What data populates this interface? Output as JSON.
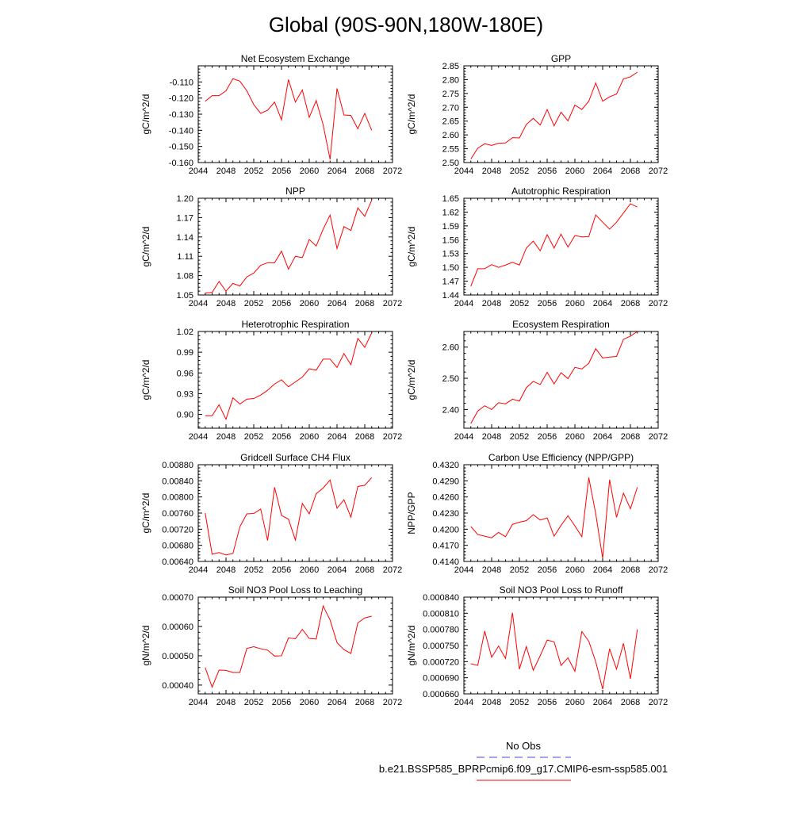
{
  "page_title": "Global (90S-90N,180W-180E)",
  "legend": {
    "obs_label": "No Obs",
    "obs_color": "#4444dd",
    "model_label": "b.e21.BSSP585_BPRPcmip6.f09_g17.CMIP6-esm-ssp585.001",
    "model_color": "#ff0000"
  },
  "chart_data": [
    {
      "type": "line",
      "title": "Net Ecosystem Exchange",
      "ylabel": "gC/m^2/d",
      "xlim": [
        2044,
        2072
      ],
      "ylim": [
        -0.16,
        -0.1
      ],
      "xticks": [
        2044,
        2048,
        2052,
        2056,
        2060,
        2064,
        2068,
        2072
      ],
      "yticks": [
        -0.16,
        -0.15,
        -0.14,
        -0.13,
        -0.12,
        -0.11
      ],
      "ytick_labels": [
        "-0.160",
        "-0.150",
        "-0.140",
        "-0.130",
        "-0.120",
        "-0.110"
      ],
      "x": [
        2045,
        2046,
        2047,
        2048,
        2049,
        2050,
        2051,
        2052,
        2053,
        2054,
        2055,
        2056,
        2057,
        2058,
        2059,
        2060,
        2061,
        2062,
        2063,
        2064,
        2065,
        2066,
        2067,
        2068,
        2069
      ],
      "series": [
        {
          "values": [
            -0.122,
            -0.1185,
            -0.1185,
            -0.1155,
            -0.108,
            -0.1095,
            -0.1155,
            -0.124,
            -0.1295,
            -0.1275,
            -0.1225,
            -0.1335,
            -0.1085,
            -0.1225,
            -0.115,
            -0.132,
            -0.1215,
            -0.1365,
            -0.158,
            -0.114,
            -0.1305,
            -0.1308,
            -0.139,
            -0.1295,
            -0.14
          ]
        }
      ]
    },
    {
      "type": "line",
      "title": "GPP",
      "ylabel": "gC/m^2/d",
      "xlim": [
        2044,
        2072
      ],
      "ylim": [
        2.5,
        2.85
      ],
      "xticks": [
        2044,
        2048,
        2052,
        2056,
        2060,
        2064,
        2068,
        2072
      ],
      "yticks": [
        2.5,
        2.55,
        2.6,
        2.65,
        2.7,
        2.75,
        2.8,
        2.85
      ],
      "ytick_labels": [
        "2.50",
        "2.55",
        "2.60",
        "2.65",
        "2.70",
        "2.75",
        "2.80",
        "2.85"
      ],
      "x": [
        2045,
        2046,
        2047,
        2048,
        2049,
        2050,
        2051,
        2052,
        2053,
        2054,
        2055,
        2056,
        2057,
        2058,
        2059,
        2060,
        2061,
        2062,
        2063,
        2064,
        2065,
        2066,
        2067,
        2068,
        2069
      ],
      "series": [
        {
          "values": [
            2.513,
            2.552,
            2.568,
            2.562,
            2.57,
            2.571,
            2.59,
            2.589,
            2.638,
            2.66,
            2.636,
            2.692,
            2.633,
            2.682,
            2.651,
            2.708,
            2.692,
            2.722,
            2.788,
            2.722,
            2.738,
            2.748,
            2.803,
            2.81,
            2.827
          ]
        }
      ]
    },
    {
      "type": "line",
      "title": "NPP",
      "ylabel": "gC/m^2/d",
      "xlim": [
        2044,
        2072
      ],
      "ylim": [
        1.05,
        1.2
      ],
      "xticks": [
        2044,
        2048,
        2052,
        2056,
        2060,
        2064,
        2068,
        2072
      ],
      "yticks": [
        1.05,
        1.08,
        1.11,
        1.14,
        1.17,
        1.2
      ],
      "ytick_labels": [
        "1.05",
        "1.08",
        "1.11",
        "1.14",
        "1.17",
        "1.20"
      ],
      "x": [
        2045,
        2046,
        2047,
        2048,
        2049,
        2050,
        2051,
        2052,
        2053,
        2054,
        2055,
        2056,
        2057,
        2058,
        2059,
        2060,
        2061,
        2062,
        2063,
        2064,
        2065,
        2066,
        2067,
        2068,
        2069
      ],
      "series": [
        {
          "values": [
            1.053,
            1.054,
            1.071,
            1.056,
            1.068,
            1.064,
            1.078,
            1.084,
            1.096,
            1.1,
            1.1,
            1.118,
            1.09,
            1.11,
            1.108,
            1.136,
            1.126,
            1.152,
            1.174,
            1.122,
            1.156,
            1.15,
            1.185,
            1.172,
            1.197
          ]
        }
      ]
    },
    {
      "type": "line",
      "title": "Autotrophic Respiration",
      "ylabel": "gC/m^2/d",
      "xlim": [
        2044,
        2072
      ],
      "ylim": [
        1.44,
        1.65
      ],
      "xticks": [
        2044,
        2048,
        2052,
        2056,
        2060,
        2064,
        2068,
        2072
      ],
      "yticks": [
        1.44,
        1.47,
        1.5,
        1.53,
        1.56,
        1.59,
        1.62,
        1.65
      ],
      "ytick_labels": [
        "1.44",
        "1.47",
        "1.50",
        "1.53",
        "1.56",
        "1.59",
        "1.62",
        "1.65"
      ],
      "x": [
        2045,
        2046,
        2047,
        2048,
        2049,
        2050,
        2051,
        2052,
        2053,
        2054,
        2055,
        2056,
        2057,
        2058,
        2059,
        2060,
        2061,
        2062,
        2063,
        2064,
        2065,
        2066,
        2067,
        2068,
        2069
      ],
      "series": [
        {
          "values": [
            1.459,
            1.497,
            1.497,
            1.506,
            1.5,
            1.505,
            1.511,
            1.505,
            1.542,
            1.557,
            1.536,
            1.571,
            1.542,
            1.572,
            1.544,
            1.569,
            1.566,
            1.567,
            1.614,
            1.598,
            1.583,
            1.598,
            1.618,
            1.638,
            1.631
          ]
        }
      ]
    },
    {
      "type": "line",
      "title": "Heterotrophic Respiration",
      "ylabel": "gC/m^2/d",
      "xlim": [
        2044,
        2072
      ],
      "ylim": [
        0.88,
        1.02
      ],
      "xticks": [
        2044,
        2048,
        2052,
        2056,
        2060,
        2064,
        2068,
        2072
      ],
      "yticks": [
        0.9,
        0.93,
        0.96,
        0.99,
        1.02
      ],
      "ytick_labels": [
        "0.90",
        "0.93",
        "0.96",
        "0.99",
        "1.02"
      ],
      "x": [
        2045,
        2046,
        2047,
        2048,
        2049,
        2050,
        2051,
        2052,
        2053,
        2054,
        2055,
        2056,
        2057,
        2058,
        2059,
        2060,
        2061,
        2062,
        2063,
        2064,
        2065,
        2066,
        2067,
        2068,
        2069
      ],
      "series": [
        {
          "values": [
            0.898,
            0.898,
            0.914,
            0.893,
            0.924,
            0.915,
            0.922,
            0.923,
            0.928,
            0.935,
            0.944,
            0.95,
            0.94,
            0.947,
            0.954,
            0.966,
            0.964,
            0.98,
            0.98,
            0.968,
            0.988,
            0.972,
            1.01,
            0.997,
            1.018
          ]
        }
      ]
    },
    {
      "type": "line",
      "title": "Ecosystem Respiration",
      "ylabel": "gC/m^2/d",
      "xlim": [
        2044,
        2072
      ],
      "ylim": [
        2.34,
        2.65
      ],
      "xticks": [
        2044,
        2048,
        2052,
        2056,
        2060,
        2064,
        2068,
        2072
      ],
      "yticks": [
        2.4,
        2.5,
        2.6
      ],
      "ytick_labels": [
        "2.40",
        "2.50",
        "2.60"
      ],
      "x": [
        2045,
        2046,
        2047,
        2048,
        2049,
        2050,
        2051,
        2052,
        2053,
        2054,
        2055,
        2056,
        2057,
        2058,
        2059,
        2060,
        2061,
        2062,
        2063,
        2064,
        2065,
        2066,
        2067,
        2068,
        2069
      ],
      "series": [
        {
          "values": [
            2.355,
            2.395,
            2.412,
            2.4,
            2.422,
            2.418,
            2.433,
            2.427,
            2.47,
            2.49,
            2.48,
            2.519,
            2.482,
            2.518,
            2.499,
            2.535,
            2.53,
            2.548,
            2.595,
            2.565,
            2.568,
            2.57,
            2.625,
            2.635,
            2.65
          ]
        }
      ]
    },
    {
      "type": "line",
      "title": "Gridcell Surface CH4 Flux",
      "ylabel": "gC/m^2/d",
      "xlim": [
        2044,
        2072
      ],
      "ylim": [
        0.0064,
        0.0088
      ],
      "xticks": [
        2044,
        2048,
        2052,
        2056,
        2060,
        2064,
        2068,
        2072
      ],
      "yticks": [
        0.0064,
        0.0068,
        0.0072,
        0.0076,
        0.008,
        0.0084,
        0.0088
      ],
      "ytick_labels": [
        "0.00640",
        "0.00680",
        "0.00720",
        "0.00760",
        "0.00800",
        "0.00840",
        "0.00880"
      ],
      "x": [
        2045,
        2046,
        2047,
        2048,
        2049,
        2050,
        2051,
        2052,
        2053,
        2054,
        2055,
        2056,
        2057,
        2058,
        2059,
        2060,
        2061,
        2062,
        2063,
        2064,
        2065,
        2066,
        2067,
        2068,
        2069
      ],
      "series": [
        {
          "values": [
            0.0076,
            0.00658,
            0.00662,
            0.00656,
            0.0066,
            0.00726,
            0.00758,
            0.00759,
            0.0077,
            0.00692,
            0.00824,
            0.00754,
            0.00745,
            0.00693,
            0.00784,
            0.00758,
            0.00808,
            0.00822,
            0.00842,
            0.00772,
            0.00793,
            0.0075,
            0.00826,
            0.00829,
            0.00848
          ]
        }
      ]
    },
    {
      "type": "line",
      "title": "Carbon Use Efficiency (NPP/GPP)",
      "ylabel": "NPP/GPP",
      "xlim": [
        2044,
        2072
      ],
      "ylim": [
        0.414,
        0.432
      ],
      "xticks": [
        2044,
        2048,
        2052,
        2056,
        2060,
        2064,
        2068,
        2072
      ],
      "yticks": [
        0.414,
        0.417,
        0.42,
        0.423,
        0.426,
        0.429,
        0.432
      ],
      "ytick_labels": [
        "0.4140",
        "0.4170",
        "0.4200",
        "0.4230",
        "0.4260",
        "0.4290",
        "0.4320"
      ],
      "x": [
        2045,
        2046,
        2047,
        2048,
        2049,
        2050,
        2051,
        2052,
        2053,
        2054,
        2055,
        2056,
        2057,
        2058,
        2059,
        2060,
        2061,
        2062,
        2063,
        2064,
        2065,
        2066,
        2067,
        2068,
        2069
      ],
      "series": [
        {
          "values": [
            0.4205,
            0.419,
            0.4187,
            0.4184,
            0.4194,
            0.4186,
            0.4209,
            0.4213,
            0.4216,
            0.4227,
            0.4217,
            0.4221,
            0.4187,
            0.4207,
            0.4225,
            0.4206,
            0.4186,
            0.4296,
            0.4229,
            0.4146,
            0.4292,
            0.4222,
            0.4267,
            0.4238,
            0.4278
          ]
        }
      ]
    },
    {
      "type": "line",
      "title": "Soil NO3 Pool Loss to Leaching",
      "ylabel": "gN/m^2/d",
      "xlim": [
        2044,
        2072
      ],
      "ylim": [
        0.00037,
        0.0007
      ],
      "xticks": [
        2044,
        2048,
        2052,
        2056,
        2060,
        2064,
        2068,
        2072
      ],
      "yticks": [
        0.0004,
        0.0005,
        0.0006,
        0.0007
      ],
      "ytick_labels": [
        "0.00040",
        "0.00050",
        "0.00060",
        "0.00070"
      ],
      "x": [
        2045,
        2046,
        2047,
        2048,
        2049,
        2050,
        2051,
        2052,
        2053,
        2054,
        2055,
        2056,
        2057,
        2058,
        2059,
        2060,
        2061,
        2062,
        2063,
        2064,
        2065,
        2066,
        2067,
        2068,
        2069
      ],
      "series": [
        {
          "values": [
            0.00046,
            0.000393,
            0.000451,
            0.00045,
            0.000443,
            0.000443,
            0.000525,
            0.000531,
            0.000524,
            0.000519,
            0.000499,
            0.0005,
            0.000561,
            0.000558,
            0.00059,
            0.000559,
            0.000557,
            0.00067,
            0.000622,
            0.000545,
            0.000521,
            0.000508,
            0.000612,
            0.000629,
            0.000635
          ]
        }
      ]
    },
    {
      "type": "line",
      "title": "Soil NO3 Pool Loss to Runoff",
      "ylabel": "gN/m^2/d",
      "xlim": [
        2044,
        2072
      ],
      "ylim": [
        0.00066,
        0.00084
      ],
      "xticks": [
        2044,
        2048,
        2052,
        2056,
        2060,
        2064,
        2068,
        2072
      ],
      "yticks": [
        0.00066,
        0.00069,
        0.00072,
        0.00075,
        0.00078,
        0.00081,
        0.00084
      ],
      "ytick_labels": [
        "0.000660",
        "0.000690",
        "0.000720",
        "0.000750",
        "0.000780",
        "0.000810",
        "0.000840"
      ],
      "x": [
        2045,
        2046,
        2047,
        2048,
        2049,
        2050,
        2051,
        2052,
        2053,
        2054,
        2055,
        2056,
        2057,
        2058,
        2059,
        2060,
        2061,
        2062,
        2063,
        2064,
        2065,
        2066,
        2067,
        2068,
        2069
      ],
      "series": [
        {
          "values": [
            0.000716,
            0.000713,
            0.000777,
            0.000728,
            0.000749,
            0.000726,
            0.000811,
            0.000706,
            0.000748,
            0.000704,
            0.000731,
            0.00076,
            0.000757,
            0.000713,
            0.000727,
            0.000702,
            0.000776,
            0.000758,
            0.00072,
            0.000669,
            0.000744,
            0.000706,
            0.000754,
            0.000688,
            0.00078
          ]
        }
      ]
    }
  ]
}
